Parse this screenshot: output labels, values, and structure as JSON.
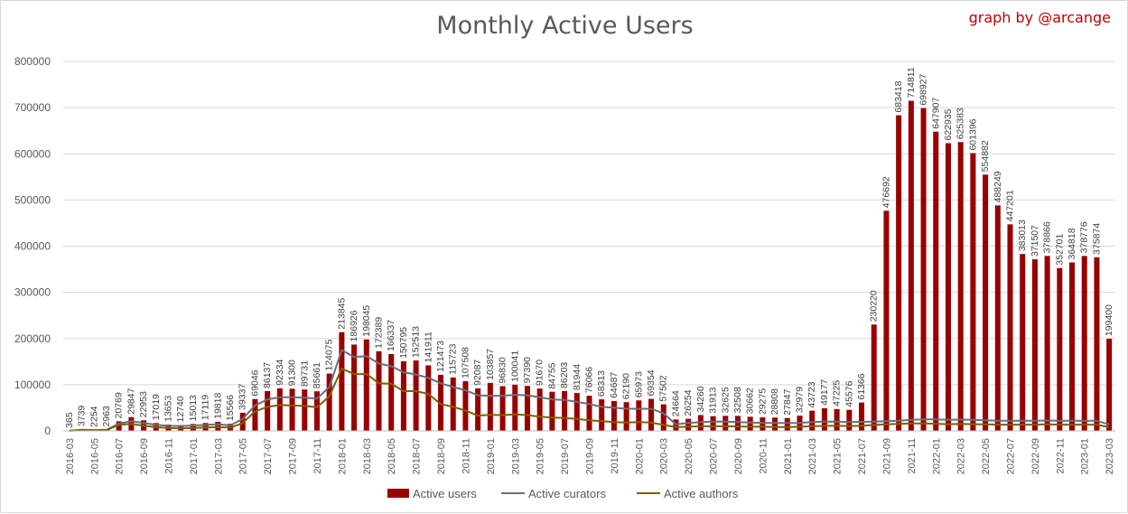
{
  "header": {
    "title": "Monthly Active Users",
    "credit": "graph by @arcange"
  },
  "colors": {
    "users": "#990000",
    "curators": "#6d6d7d",
    "authors": "#7f6000",
    "grid": "#d9d9d9",
    "axis_text": "#595959"
  },
  "chart_data": {
    "type": "bar",
    "title": "Monthly Active Users",
    "ylim": [
      0,
      800000
    ],
    "yticks": [
      0,
      100000,
      200000,
      300000,
      400000,
      500000,
      600000,
      700000,
      800000
    ],
    "grid": true,
    "legend_position": "bottom",
    "categories": [
      "2016-03",
      "2016-04",
      "2016-05",
      "2016-06",
      "2016-07",
      "2016-08",
      "2016-09",
      "2016-10",
      "2016-11",
      "2016-12",
      "2017-01",
      "2017-02",
      "2017-03",
      "2017-04",
      "2017-05",
      "2017-06",
      "2017-07",
      "2017-08",
      "2017-09",
      "2017-10",
      "2017-11",
      "2017-12",
      "2018-01",
      "2018-02",
      "2018-03",
      "2018-04",
      "2018-05",
      "2018-06",
      "2018-07",
      "2018-08",
      "2018-09",
      "2018-10",
      "2018-11",
      "2018-12",
      "2019-01",
      "2019-02",
      "2019-03",
      "2019-04",
      "2019-05",
      "2019-06",
      "2019-07",
      "2019-08",
      "2019-09",
      "2019-10",
      "2019-11",
      "2019-12",
      "2020-01",
      "2020-02",
      "2020-03",
      "2020-04",
      "2020-05",
      "2020-06",
      "2020-07",
      "2020-08",
      "2020-09",
      "2020-10",
      "2020-11",
      "2020-12",
      "2021-01",
      "2021-02",
      "2021-03",
      "2021-04",
      "2021-05",
      "2021-06",
      "2021-07",
      "2021-08",
      "2021-09",
      "2021-10",
      "2021-11",
      "2021-12",
      "2022-01",
      "2022-02",
      "2022-03",
      "2022-04",
      "2022-05",
      "2022-06",
      "2022-07",
      "2022-08",
      "2022-09",
      "2022-10",
      "2022-11",
      "2022-12",
      "2023-01",
      "2023-02",
      "2023-03"
    ],
    "xtick_labels": [
      "2016-03",
      "2016-05",
      "2016-07",
      "2016-09",
      "2016-11",
      "2017-01",
      "2017-03",
      "2017-05",
      "2017-07",
      "2017-09",
      "2017-11",
      "2018-01",
      "2018-03",
      "2018-05",
      "2018-07",
      "2018-09",
      "2018-11",
      "2019-01",
      "2019-03",
      "2019-05",
      "2019-07",
      "2019-09",
      "2019-11",
      "2020-01",
      "2020-03",
      "2020-05",
      "2020-07",
      "2020-09",
      "2020-11",
      "2021-01",
      "2021-03",
      "2021-05",
      "2021-07",
      "2021-09",
      "2021-11",
      "2022-01",
      "2022-03",
      "2022-05",
      "2022-07",
      "2022-09",
      "2022-11",
      "2023-01",
      "2023-03"
    ],
    "series": [
      {
        "name": "Active users",
        "kind": "bar",
        "values": [
          365,
          3739,
          2254,
          2963,
          20769,
          29847,
          22953,
          17019,
          13653,
          12740,
          15013,
          17119,
          19818,
          15566,
          39337,
          69046,
          86137,
          92334,
          91300,
          89731,
          85661,
          124075,
          213845,
          186926,
          198045,
          172389,
          166337,
          150795,
          152513,
          141911,
          121473,
          115723,
          107508,
          92087,
          103857,
          96830,
          100041,
          97390,
          91670,
          84755,
          86203,
          81944,
          76066,
          68313,
          64687,
          62190,
          65973,
          69354,
          57502,
          24664,
          26254,
          34260,
          31913,
          32625,
          32508,
          30662,
          29275,
          28808,
          27847,
          32979,
          43723,
          49177,
          47225,
          45576,
          61366,
          230220,
          476692,
          683418,
          714811,
          698927,
          647907,
          622935,
          625383,
          601396,
          554882,
          488249,
          447201,
          383013,
          371507,
          378866,
          352701,
          364818,
          378776,
          375874,
          199400
        ]
      },
      {
        "name": "Active curators",
        "kind": "line",
        "values": [
          300,
          2500,
          1800,
          2300,
          16000,
          21000,
          17000,
          13000,
          11000,
          10500,
          11500,
          13000,
          14500,
          12000,
          26000,
          55000,
          68000,
          73000,
          73000,
          72000,
          70000,
          95000,
          175000,
          160000,
          162000,
          146000,
          140000,
          127000,
          122000,
          115000,
          103000,
          95000,
          88000,
          77000,
          76000,
          76000,
          78000,
          77000,
          73000,
          68000,
          67000,
          63000,
          58000,
          52000,
          50000,
          48000,
          48000,
          48000,
          38000,
          14000,
          17000,
          19000,
          20000,
          20000,
          19000,
          18000,
          17500,
          17000,
          17000,
          17500,
          19000,
          20000,
          20000,
          19000,
          19500,
          20000,
          21000,
          22000,
          24000,
          25000,
          25000,
          24000,
          24500,
          24000,
          23000,
          22000,
          22000,
          22000,
          22000,
          22500,
          22000,
          22000,
          22000,
          22000,
          14000
        ]
      },
      {
        "name": "Active authors",
        "kind": "line",
        "values": [
          200,
          1800,
          1200,
          1500,
          13000,
          15000,
          11000,
          8000,
          6000,
          5500,
          6500,
          7500,
          8500,
          7000,
          17000,
          42000,
          52000,
          56000,
          55000,
          54000,
          51000,
          75000,
          135000,
          123000,
          123000,
          103000,
          102000,
          86000,
          86000,
          80000,
          58000,
          52000,
          44000,
          33000,
          35000,
          34000,
          36000,
          34000,
          31000,
          29000,
          28000,
          26000,
          23000,
          21000,
          19000,
          18000,
          19000,
          18000,
          13000,
          8000,
          9000,
          10000,
          10000,
          10000,
          9500,
          9000,
          9000,
          8500,
          8500,
          9000,
          10000,
          11000,
          11000,
          10500,
          11000,
          13000,
          14000,
          15000,
          16000,
          16000,
          15500,
          14500,
          15000,
          14500,
          14000,
          13500,
          13500,
          13500,
          13500,
          14000,
          13500,
          13500,
          13500,
          13500,
          8000
        ]
      }
    ]
  }
}
